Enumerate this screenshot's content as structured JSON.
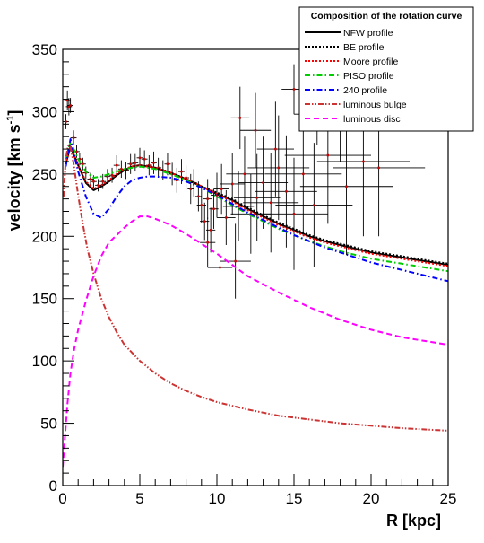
{
  "chart_data": {
    "type": "line",
    "xlabel": "R [kpc]",
    "ylabel_main": "velocity [km s",
    "ylabel_sup": "-1",
    "ylabel_close": "]",
    "xlim": [
      0,
      25
    ],
    "ylim": [
      0,
      350
    ],
    "xticks": [
      0,
      5,
      10,
      15,
      20,
      25
    ],
    "yticks": [
      0,
      50,
      100,
      150,
      200,
      250,
      300,
      350
    ],
    "grid": false,
    "legend": {
      "title": "Composition of the rotation curve",
      "placement": "top-right",
      "entries": [
        "NFW profile",
        "BE profile",
        "Moore profile",
        "PISO profile",
        "240 profile",
        "luminous bulge",
        "luminous disc"
      ]
    },
    "series": [
      {
        "name": "NFW profile",
        "color": "#000000",
        "dash": "solid",
        "x": [
          0.2,
          0.5,
          1.0,
          1.5,
          2.0,
          2.5,
          3.0,
          3.5,
          4.0,
          4.5,
          5.0,
          5.5,
          6,
          7,
          8,
          9,
          10,
          11,
          12,
          13,
          14,
          15,
          16,
          17,
          18,
          19,
          20,
          21,
          22,
          23,
          24,
          25
        ],
        "y": [
          258,
          272,
          257,
          243,
          237,
          240,
          244,
          249,
          253,
          256,
          257,
          256,
          255,
          251,
          246,
          240,
          234,
          229,
          222,
          216,
          210,
          205,
          200,
          196,
          193,
          190,
          187,
          185,
          183,
          181,
          179,
          177
        ]
      },
      {
        "name": "BE profile",
        "color": "#000000",
        "dash": "dotted",
        "x": [
          0.2,
          0.5,
          1.0,
          1.5,
          2.0,
          2.5,
          3.0,
          3.5,
          4.0,
          4.5,
          5.0,
          5.5,
          6,
          7,
          8,
          9,
          10,
          11,
          12,
          13,
          14,
          15,
          16,
          17,
          18,
          19,
          20,
          21,
          22,
          23,
          24,
          25
        ],
        "y": [
          258,
          272,
          257,
          243,
          237,
          240,
          244,
          249,
          253,
          256,
          257,
          256,
          255,
          251,
          246,
          240,
          235,
          230,
          223,
          217,
          211,
          206,
          201,
          197,
          194,
          191,
          188,
          186,
          184,
          182,
          180,
          178
        ]
      },
      {
        "name": "Moore profile",
        "color": "#ff0000",
        "dash": "dotted",
        "x": [
          0.2,
          0.5,
          1.0,
          1.5,
          2.0,
          2.5,
          3.0,
          3.5,
          4.0,
          4.5,
          5.0,
          5.5,
          6,
          7,
          8,
          9,
          10,
          11,
          12,
          13,
          14,
          15,
          16,
          17,
          18,
          19,
          20,
          21,
          22,
          23,
          24,
          25
        ],
        "y": [
          258,
          272,
          257,
          244,
          238,
          241,
          245,
          250,
          254,
          256,
          257,
          256,
          255,
          251,
          246,
          240,
          234,
          228,
          221,
          215,
          209,
          204,
          199,
          195,
          192,
          189,
          186,
          184,
          182,
          180,
          178,
          176
        ]
      },
      {
        "name": "PISO profile",
        "color": "#00cc00",
        "dash": "dashdot",
        "x": [
          0.2,
          0.5,
          1.0,
          1.5,
          2.0,
          2.5,
          3.0,
          3.5,
          4.0,
          4.5,
          5.0,
          5.5,
          6,
          7,
          8,
          9,
          10,
          11,
          12,
          13,
          14,
          15,
          16,
          17,
          18,
          19,
          20,
          21,
          22,
          23,
          24,
          25
        ],
        "y": [
          262,
          276,
          262,
          252,
          247,
          248,
          250,
          252,
          254,
          255,
          256,
          255,
          254,
          250,
          245,
          239,
          232,
          225,
          218,
          212,
          206,
          201,
          196,
          192,
          188,
          185,
          182,
          180,
          178,
          176,
          174,
          172
        ]
      },
      {
        "name": "240 profile",
        "color": "#0000ff",
        "dash": "dashdot",
        "x": [
          0.2,
          0.5,
          1.0,
          1.5,
          2.0,
          2.5,
          3.0,
          3.5,
          4.0,
          4.5,
          5.0,
          5.5,
          6,
          7,
          8,
          9,
          10,
          11,
          12,
          13,
          14,
          15,
          16,
          17,
          18,
          19,
          20,
          21,
          22,
          23,
          24,
          25
        ],
        "y": [
          256,
          278,
          252,
          232,
          218,
          215,
          222,
          232,
          240,
          245,
          247,
          248,
          248,
          247,
          244,
          239,
          233,
          226,
          219,
          213,
          207,
          201,
          196,
          191,
          187,
          183,
          179,
          176,
          173,
          170,
          167,
          164
        ]
      },
      {
        "name": "luminous bulge",
        "color": "#cc3333",
        "dash": "dashdotdot",
        "x": [
          0.05,
          0.2,
          0.35,
          0.5,
          0.7,
          1.0,
          1.3,
          1.6,
          2.0,
          2.5,
          3.0,
          3.5,
          4,
          5,
          6,
          7,
          8,
          9,
          10,
          12,
          14,
          16,
          18,
          20,
          22,
          25
        ],
        "y": [
          232,
          262,
          273,
          272,
          259,
          233,
          210,
          190,
          170,
          150,
          135,
          123,
          113,
          100,
          90,
          82,
          76,
          71,
          67,
          61,
          56,
          53,
          50,
          48,
          46,
          44
        ]
      },
      {
        "name": "luminous disc",
        "color": "#ff00ff",
        "dash": "dashed",
        "x": [
          0,
          0.15,
          0.3,
          0.5,
          0.75,
          1.0,
          1.5,
          2.0,
          2.5,
          3.0,
          3.5,
          4.0,
          4.5,
          5.0,
          5.5,
          6,
          7,
          8,
          9,
          10,
          11,
          12,
          14,
          16,
          18,
          20,
          22,
          25
        ],
        "y": [
          15,
          40,
          65,
          90,
          110,
          125,
          148,
          168,
          184,
          195,
          201,
          207,
          212,
          216,
          216,
          214,
          209,
          202,
          194,
          186,
          177,
          168,
          155,
          143,
          133,
          125,
          119,
          113
        ]
      }
    ],
    "data_points": [
      {
        "x": 0.2,
        "y": 292,
        "xerr": 0.2,
        "yerr": 6
      },
      {
        "x": 0.3,
        "y": 309,
        "xerr": 0.2,
        "yerr": 8
      },
      {
        "x": 0.4,
        "y": 304,
        "xerr": 0.2,
        "yerr": 7
      },
      {
        "x": 0.5,
        "y": 305,
        "xerr": 0.2,
        "yerr": 6
      },
      {
        "x": 0.7,
        "y": 279,
        "xerr": 0.2,
        "yerr": 6
      },
      {
        "x": 0.9,
        "y": 268,
        "xerr": 0.2,
        "yerr": 5
      },
      {
        "x": 1.1,
        "y": 262,
        "xerr": 0.2,
        "yerr": 5
      },
      {
        "x": 1.3,
        "y": 258,
        "xerr": 0.2,
        "yerr": 5
      },
      {
        "x": 1.5,
        "y": 251,
        "xerr": 0.2,
        "yerr": 5
      },
      {
        "x": 1.8,
        "y": 246,
        "xerr": 0.2,
        "yerr": 5
      },
      {
        "x": 2.0,
        "y": 244,
        "xerr": 0.2,
        "yerr": 5
      },
      {
        "x": 2.3,
        "y": 241,
        "xerr": 0.2,
        "yerr": 5
      },
      {
        "x": 2.6,
        "y": 244,
        "xerr": 0.2,
        "yerr": 6
      },
      {
        "x": 2.9,
        "y": 248,
        "xerr": 0.2,
        "yerr": 6
      },
      {
        "x": 3.2,
        "y": 249,
        "xerr": 0.2,
        "yerr": 6
      },
      {
        "x": 3.5,
        "y": 257,
        "xerr": 0.2,
        "yerr": 8
      },
      {
        "x": 3.8,
        "y": 254,
        "xerr": 0.2,
        "yerr": 7
      },
      {
        "x": 4.1,
        "y": 253,
        "xerr": 0.2,
        "yerr": 7
      },
      {
        "x": 4.4,
        "y": 258,
        "xerr": 0.2,
        "yerr": 8
      },
      {
        "x": 4.7,
        "y": 259,
        "xerr": 0.2,
        "yerr": 7
      },
      {
        "x": 5.0,
        "y": 263,
        "xerr": 0.2,
        "yerr": 8
      },
      {
        "x": 5.3,
        "y": 262,
        "xerr": 0.2,
        "yerr": 7
      },
      {
        "x": 5.6,
        "y": 257,
        "xerr": 0.2,
        "yerr": 8
      },
      {
        "x": 5.9,
        "y": 259,
        "xerr": 0.2,
        "yerr": 9
      },
      {
        "x": 6.2,
        "y": 255,
        "xerr": 0.2,
        "yerr": 8
      },
      {
        "x": 6.5,
        "y": 253,
        "xerr": 0.2,
        "yerr": 8
      },
      {
        "x": 6.8,
        "y": 258,
        "xerr": 0.2,
        "yerr": 9
      },
      {
        "x": 7.1,
        "y": 250,
        "xerr": 0.2,
        "yerr": 9
      },
      {
        "x": 7.4,
        "y": 245,
        "xerr": 0.2,
        "yerr": 10
      },
      {
        "x": 7.7,
        "y": 252,
        "xerr": 0.2,
        "yerr": 10
      },
      {
        "x": 8.0,
        "y": 247,
        "xerr": 0.2,
        "yerr": 10
      },
      {
        "x": 8.3,
        "y": 238,
        "xerr": 0.2,
        "yerr": 12
      },
      {
        "x": 8.5,
        "y": 243,
        "xerr": 0.2,
        "yerr": 11
      },
      {
        "x": 8.8,
        "y": 232,
        "xerr": 0.2,
        "yerr": 12
      },
      {
        "x": 9.0,
        "y": 225,
        "xerr": 0.3,
        "yerr": 14
      },
      {
        "x": 9.2,
        "y": 212,
        "xerr": 0.3,
        "yerr": 15
      },
      {
        "x": 9.4,
        "y": 230,
        "xerr": 0.3,
        "yerr": 16
      },
      {
        "x": 9.6,
        "y": 205,
        "xerr": 0.3,
        "yerr": 18
      },
      {
        "x": 9.8,
        "y": 222,
        "xerr": 0.3,
        "yerr": 16
      },
      {
        "x": 10.0,
        "y": 233,
        "xerr": 0.4,
        "yerr": 18
      },
      {
        "x": 10.3,
        "y": 238,
        "xerr": 0.5,
        "yerr": 20
      },
      {
        "x": 10.6,
        "y": 215,
        "xerr": 0.6,
        "yerr": 22
      },
      {
        "x": 11.0,
        "y": 242,
        "xerr": 0.8,
        "yerr": 25
      },
      {
        "x": 11.4,
        "y": 224,
        "xerr": 1.0,
        "yerr": 28
      },
      {
        "x": 11.8,
        "y": 250,
        "xerr": 1.2,
        "yerr": 30
      },
      {
        "x": 12.2,
        "y": 218,
        "xerr": 1.3,
        "yerr": 32
      },
      {
        "x": 12.6,
        "y": 231,
        "xerr": 1.5,
        "yerr": 35
      },
      {
        "x": 13.0,
        "y": 243,
        "xerr": 1.6,
        "yerr": 37
      },
      {
        "x": 13.5,
        "y": 227,
        "xerr": 1.8,
        "yerr": 40
      },
      {
        "x": 14.0,
        "y": 255,
        "xerr": 2.0,
        "yerr": 42
      },
      {
        "x": 14.5,
        "y": 236,
        "xerr": 2.0,
        "yerr": 45
      },
      {
        "x": 15.0,
        "y": 218,
        "xerr": 2.2,
        "yerr": 45
      },
      {
        "x": 15.6,
        "y": 250,
        "xerr": 2.5,
        "yerr": 50
      },
      {
        "x": 16.3,
        "y": 225,
        "xerr": 2.5,
        "yerr": 50
      },
      {
        "x": 17.2,
        "y": 265,
        "xerr": 2.8,
        "yerr": 55
      },
      {
        "x": 18.4,
        "y": 240,
        "xerr": 3.0,
        "yerr": 55
      },
      {
        "x": 19.5,
        "y": 260,
        "xerr": 3.0,
        "yerr": 60
      },
      {
        "x": 20.5,
        "y": 255,
        "xerr": 3.0,
        "yerr": 55
      },
      {
        "x": 15.0,
        "y": 318,
        "xerr": 0.8,
        "yerr": 20
      },
      {
        "x": 16.5,
        "y": 298,
        "xerr": 1.5,
        "yerr": 25
      },
      {
        "x": 12.5,
        "y": 285,
        "xerr": 1.0,
        "yerr": 30
      },
      {
        "x": 18.0,
        "y": 290,
        "xerr": 2.0,
        "yerr": 30
      },
      {
        "x": 10.2,
        "y": 175,
        "xerr": 0.8,
        "yerr": 22
      },
      {
        "x": 11.2,
        "y": 180,
        "xerr": 1.0,
        "yerr": 30
      },
      {
        "x": 9.4,
        "y": 195,
        "xerr": 0.5,
        "yerr": 20
      },
      {
        "x": 11.5,
        "y": 295,
        "xerr": 0.6,
        "yerr": 25
      },
      {
        "x": 13.8,
        "y": 270,
        "xerr": 1.2,
        "yerr": 38
      }
    ]
  }
}
